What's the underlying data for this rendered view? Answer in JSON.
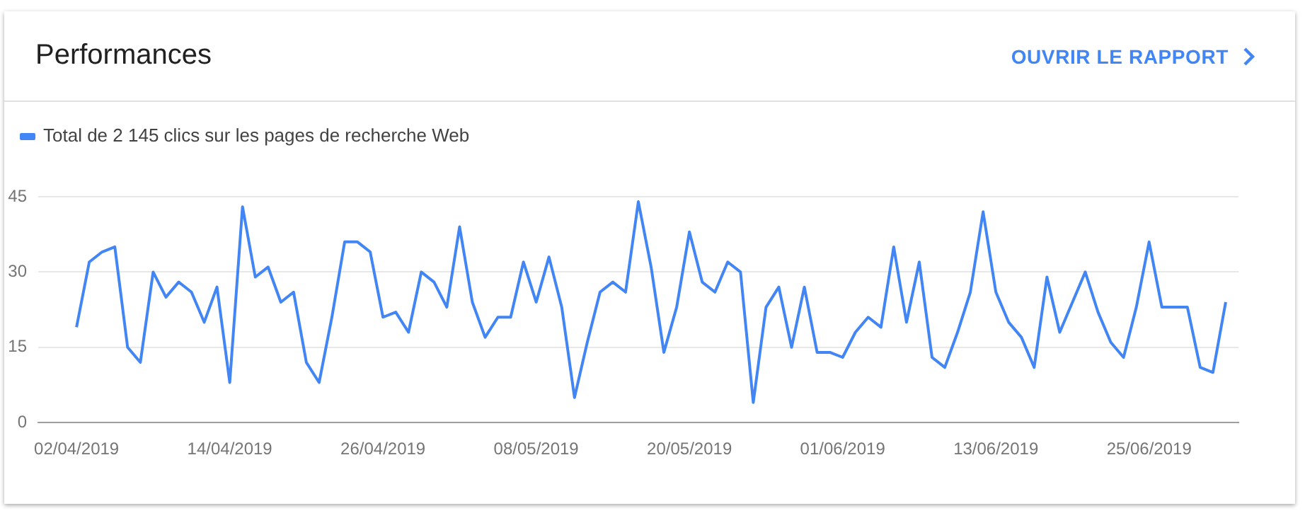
{
  "chart_data": {
    "type": "line",
    "title": "Performances",
    "annotations": [
      "OUVRIR LE RAPPORT"
    ],
    "x": [
      "2019-04-02",
      "2019-04-03",
      "2019-04-04",
      "2019-04-05",
      "2019-04-06",
      "2019-04-07",
      "2019-04-08",
      "2019-04-09",
      "2019-04-10",
      "2019-04-11",
      "2019-04-12",
      "2019-04-13",
      "2019-04-14",
      "2019-04-15",
      "2019-04-16",
      "2019-04-17",
      "2019-04-18",
      "2019-04-19",
      "2019-04-20",
      "2019-04-21",
      "2019-04-22",
      "2019-04-23",
      "2019-04-24",
      "2019-04-25",
      "2019-04-26",
      "2019-04-27",
      "2019-04-28",
      "2019-04-29",
      "2019-04-30",
      "2019-05-01",
      "2019-05-02",
      "2019-05-03",
      "2019-05-04",
      "2019-05-05",
      "2019-05-06",
      "2019-05-07",
      "2019-05-08",
      "2019-05-09",
      "2019-05-10",
      "2019-05-11",
      "2019-05-12",
      "2019-05-13",
      "2019-05-14",
      "2019-05-15",
      "2019-05-16",
      "2019-05-17",
      "2019-05-18",
      "2019-05-19",
      "2019-05-20",
      "2019-05-21",
      "2019-05-22",
      "2019-05-23",
      "2019-05-24",
      "2019-05-25",
      "2019-05-26",
      "2019-05-27",
      "2019-05-28",
      "2019-05-29",
      "2019-05-30",
      "2019-05-31",
      "2019-06-01",
      "2019-06-02",
      "2019-06-03",
      "2019-06-04",
      "2019-06-05",
      "2019-06-06",
      "2019-06-07",
      "2019-06-08",
      "2019-06-09",
      "2019-06-10",
      "2019-06-11",
      "2019-06-12",
      "2019-06-13",
      "2019-06-14",
      "2019-06-15",
      "2019-06-16",
      "2019-06-17",
      "2019-06-18",
      "2019-06-19",
      "2019-06-20",
      "2019-06-21",
      "2019-06-22",
      "2019-06-23",
      "2019-06-24",
      "2019-06-25",
      "2019-06-26",
      "2019-06-27",
      "2019-06-28",
      "2019-06-29",
      "2019-06-30",
      "2019-07-01"
    ],
    "series": [
      {
        "name": "Total de 2 145 clics sur les pages de recherche Web",
        "color": "#4285f4",
        "values": [
          19,
          32,
          34,
          35,
          15,
          12,
          30,
          25,
          28,
          26,
          20,
          27,
          8,
          43,
          29,
          31,
          24,
          26,
          12,
          8,
          21,
          36,
          36,
          34,
          21,
          22,
          18,
          30,
          28,
          23,
          39,
          24,
          17,
          21,
          21,
          32,
          24,
          33,
          23,
          5,
          16,
          26,
          28,
          26,
          44,
          31,
          14,
          23,
          38,
          28,
          26,
          32,
          30,
          4,
          23,
          27,
          15,
          27,
          14,
          14,
          13,
          18,
          21,
          19,
          35,
          20,
          32,
          13,
          11,
          18,
          26,
          42,
          26,
          20,
          17,
          11,
          29,
          18,
          24,
          30,
          22,
          16,
          13,
          23,
          36,
          23,
          23,
          23,
          11,
          10,
          24
        ]
      }
    ],
    "xlim": [
      "2019-03-30",
      "2019-07-02"
    ],
    "xticks": [
      {
        "value": "2019-04-02",
        "label": "02/04/2019"
      },
      {
        "value": "2019-04-14",
        "label": "14/04/2019"
      },
      {
        "value": "2019-04-26",
        "label": "26/04/2019"
      },
      {
        "value": "2019-05-08",
        "label": "08/05/2019"
      },
      {
        "value": "2019-05-20",
        "label": "20/05/2019"
      },
      {
        "value": "2019-06-01",
        "label": "01/06/2019"
      },
      {
        "value": "2019-06-13",
        "label": "13/06/2019"
      },
      {
        "value": "2019-06-25",
        "label": "25/06/2019"
      }
    ],
    "ylim": [
      0,
      45
    ],
    "yticks": [
      0,
      15,
      30,
      45
    ],
    "grid": "y",
    "legend": "top left",
    "marker": "none",
    "line_style": "solid"
  }
}
